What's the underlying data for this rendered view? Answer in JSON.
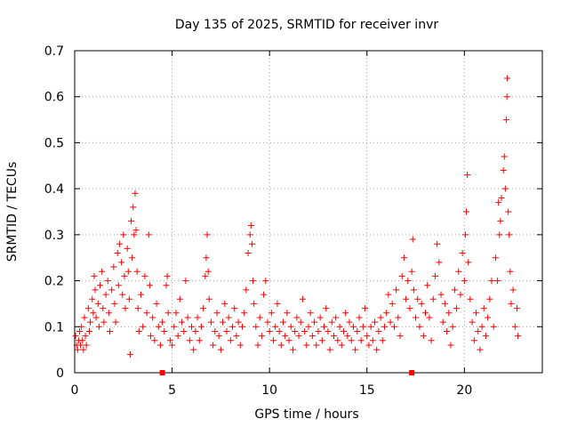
{
  "chart_data": {
    "type": "scatter",
    "title": "Day 135 of 2025, SRMTID for receiver invr",
    "xlabel": "GPS time / hours",
    "ylabel": "SRMTID / TECUs",
    "xlim": [
      0,
      24
    ],
    "ylim": [
      0,
      0.7
    ],
    "xticks": [
      0,
      5,
      10,
      15,
      20
    ],
    "yticks": [
      0,
      0.1,
      0.2,
      0.3,
      0.4,
      0.5,
      0.6,
      0.7
    ],
    "xtick_labels": [
      "0",
      "5",
      "10",
      "15",
      "20"
    ],
    "ytick_labels": [
      "0",
      "0.1",
      "0.2",
      "0.3",
      "0.4",
      "0.5",
      "0.6",
      "0.7"
    ],
    "grid": true,
    "marker": "+",
    "color": "#ff0000",
    "points": [
      [
        0.05,
        0.08
      ],
      [
        0.1,
        0.06
      ],
      [
        0.15,
        0.05
      ],
      [
        0.2,
        0.07
      ],
      [
        0.25,
        0.09
      ],
      [
        0.3,
        0.06
      ],
      [
        0.35,
        0.1
      ],
      [
        0.4,
        0.07
      ],
      [
        0.45,
        0.05
      ],
      [
        0.5,
        0.12
      ],
      [
        0.55,
        0.08
      ],
      [
        0.6,
        0.06
      ],
      [
        0.7,
        0.14
      ],
      [
        0.75,
        0.09
      ],
      [
        0.8,
        0.11
      ],
      [
        0.9,
        0.16
      ],
      [
        0.95,
        0.13
      ],
      [
        1.0,
        0.21
      ],
      [
        1.05,
        0.18
      ],
      [
        1.1,
        0.12
      ],
      [
        1.2,
        0.15
      ],
      [
        1.25,
        0.1
      ],
      [
        1.3,
        0.19
      ],
      [
        1.4,
        0.22
      ],
      [
        1.45,
        0.14
      ],
      [
        1.5,
        0.11
      ],
      [
        1.6,
        0.17
      ],
      [
        1.7,
        0.2
      ],
      [
        1.75,
        0.13
      ],
      [
        1.8,
        0.09
      ],
      [
        1.9,
        0.18
      ],
      [
        2.0,
        0.23
      ],
      [
        2.05,
        0.15
      ],
      [
        2.1,
        0.11
      ],
      [
        2.2,
        0.26
      ],
      [
        2.25,
        0.19
      ],
      [
        2.3,
        0.28
      ],
      [
        2.4,
        0.24
      ],
      [
        2.45,
        0.17
      ],
      [
        2.5,
        0.3
      ],
      [
        2.55,
        0.21
      ],
      [
        2.6,
        0.14
      ],
      [
        2.7,
        0.27
      ],
      [
        2.75,
        0.22
      ],
      [
        2.8,
        0.16
      ],
      [
        2.85,
        0.04
      ],
      [
        2.9,
        0.33
      ],
      [
        2.95,
        0.25
      ],
      [
        3.0,
        0.36
      ],
      [
        3.05,
        0.3
      ],
      [
        3.1,
        0.39
      ],
      [
        3.15,
        0.31
      ],
      [
        3.2,
        0.22
      ],
      [
        3.25,
        0.14
      ],
      [
        3.3,
        0.09
      ],
      [
        3.4,
        0.17
      ],
      [
        3.5,
        0.1
      ],
      [
        3.6,
        0.21
      ],
      [
        3.7,
        0.13
      ],
      [
        3.8,
        0.3
      ],
      [
        3.85,
        0.19
      ],
      [
        3.9,
        0.08
      ],
      [
        4.0,
        0.12
      ],
      [
        4.1,
        0.07
      ],
      [
        4.2,
        0.15
      ],
      [
        4.3,
        0.1
      ],
      [
        4.4,
        0.06
      ],
      [
        4.5,
        0.11
      ],
      [
        4.6,
        0.09
      ],
      [
        4.7,
        0.19
      ],
      [
        4.75,
        0.21
      ],
      [
        4.8,
        0.13
      ],
      [
        4.9,
        0.07
      ],
      [
        5.0,
        0.06
      ],
      [
        5.1,
        0.1
      ],
      [
        5.2,
        0.13
      ],
      [
        5.3,
        0.08
      ],
      [
        5.4,
        0.16
      ],
      [
        5.5,
        0.11
      ],
      [
        5.6,
        0.09
      ],
      [
        5.7,
        0.2
      ],
      [
        5.8,
        0.12
      ],
      [
        5.9,
        0.07
      ],
      [
        6.0,
        0.1
      ],
      [
        6.1,
        0.05
      ],
      [
        6.2,
        0.09
      ],
      [
        6.3,
        0.12
      ],
      [
        6.4,
        0.07
      ],
      [
        6.5,
        0.1
      ],
      [
        6.6,
        0.14
      ],
      [
        6.7,
        0.21
      ],
      [
        6.75,
        0.25
      ],
      [
        6.8,
        0.3
      ],
      [
        6.85,
        0.22
      ],
      [
        6.9,
        0.16
      ],
      [
        7.0,
        0.11
      ],
      [
        7.1,
        0.06
      ],
      [
        7.2,
        0.09
      ],
      [
        7.3,
        0.13
      ],
      [
        7.4,
        0.08
      ],
      [
        7.5,
        0.05
      ],
      [
        7.6,
        0.11
      ],
      [
        7.7,
        0.15
      ],
      [
        7.8,
        0.09
      ],
      [
        7.9,
        0.12
      ],
      [
        8.0,
        0.07
      ],
      [
        8.1,
        0.1
      ],
      [
        8.2,
        0.14
      ],
      [
        8.3,
        0.08
      ],
      [
        8.4,
        0.11
      ],
      [
        8.5,
        0.06
      ],
      [
        8.6,
        0.1
      ],
      [
        8.7,
        0.13
      ],
      [
        8.8,
        0.18
      ],
      [
        8.9,
        0.26
      ],
      [
        9.0,
        0.3
      ],
      [
        9.05,
        0.32
      ],
      [
        9.1,
        0.28
      ],
      [
        9.15,
        0.2
      ],
      [
        9.2,
        0.15
      ],
      [
        9.3,
        0.1
      ],
      [
        9.4,
        0.06
      ],
      [
        9.5,
        0.12
      ],
      [
        9.6,
        0.08
      ],
      [
        9.7,
        0.17
      ],
      [
        9.8,
        0.2
      ],
      [
        9.9,
        0.11
      ],
      [
        10.0,
        0.09
      ],
      [
        10.1,
        0.13
      ],
      [
        10.2,
        0.07
      ],
      [
        10.3,
        0.1
      ],
      [
        10.4,
        0.15
      ],
      [
        10.5,
        0.09
      ],
      [
        10.6,
        0.06
      ],
      [
        10.7,
        0.11
      ],
      [
        10.8,
        0.08
      ],
      [
        10.9,
        0.13
      ],
      [
        11.0,
        0.07
      ],
      [
        11.1,
        0.1
      ],
      [
        11.2,
        0.05
      ],
      [
        11.3,
        0.09
      ],
      [
        11.4,
        0.12
      ],
      [
        11.5,
        0.08
      ],
      [
        11.6,
        0.11
      ],
      [
        11.7,
        0.16
      ],
      [
        11.8,
        0.09
      ],
      [
        11.9,
        0.06
      ],
      [
        12.0,
        0.1
      ],
      [
        12.1,
        0.13
      ],
      [
        12.2,
        0.08
      ],
      [
        12.3,
        0.11
      ],
      [
        12.4,
        0.06
      ],
      [
        12.5,
        0.09
      ],
      [
        12.6,
        0.12
      ],
      [
        12.7,
        0.07
      ],
      [
        12.8,
        0.1
      ],
      [
        12.9,
        0.14
      ],
      [
        13.0,
        0.09
      ],
      [
        13.1,
        0.05
      ],
      [
        13.2,
        0.11
      ],
      [
        13.3,
        0.08
      ],
      [
        13.4,
        0.12
      ],
      [
        13.5,
        0.07
      ],
      [
        13.6,
        0.1
      ],
      [
        13.7,
        0.06
      ],
      [
        13.8,
        0.09
      ],
      [
        13.9,
        0.13
      ],
      [
        14.0,
        0.08
      ],
      [
        14.1,
        0.11
      ],
      [
        14.2,
        0.07
      ],
      [
        14.3,
        0.1
      ],
      [
        14.4,
        0.05
      ],
      [
        14.5,
        0.09
      ],
      [
        14.6,
        0.12
      ],
      [
        14.7,
        0.07
      ],
      [
        14.8,
        0.1
      ],
      [
        14.9,
        0.14
      ],
      [
        15.0,
        0.08
      ],
      [
        15.1,
        0.06
      ],
      [
        15.2,
        0.1
      ],
      [
        15.3,
        0.07
      ],
      [
        15.4,
        0.11
      ],
      [
        15.5,
        0.05
      ],
      [
        15.6,
        0.09
      ],
      [
        15.7,
        0.12
      ],
      [
        15.8,
        0.07
      ],
      [
        15.9,
        0.1
      ],
      [
        16.0,
        0.13
      ],
      [
        16.1,
        0.17
      ],
      [
        16.2,
        0.11
      ],
      [
        16.3,
        0.15
      ],
      [
        16.4,
        0.1
      ],
      [
        16.5,
        0.18
      ],
      [
        16.6,
        0.12
      ],
      [
        16.7,
        0.08
      ],
      [
        16.8,
        0.21
      ],
      [
        16.9,
        0.25
      ],
      [
        17.0,
        0.16
      ],
      [
        17.1,
        0.2
      ],
      [
        17.2,
        0.14
      ],
      [
        17.3,
        0.22
      ],
      [
        17.35,
        0.29
      ],
      [
        17.4,
        0.18
      ],
      [
        17.5,
        0.12
      ],
      [
        17.6,
        0.16
      ],
      [
        17.7,
        0.1
      ],
      [
        17.8,
        0.15
      ],
      [
        17.9,
        0.08
      ],
      [
        18.0,
        0.13
      ],
      [
        18.1,
        0.19
      ],
      [
        18.2,
        0.12
      ],
      [
        18.3,
        0.07
      ],
      [
        18.4,
        0.16
      ],
      [
        18.5,
        0.21
      ],
      [
        18.6,
        0.28
      ],
      [
        18.7,
        0.24
      ],
      [
        18.8,
        0.17
      ],
      [
        18.9,
        0.11
      ],
      [
        19.0,
        0.15
      ],
      [
        19.1,
        0.09
      ],
      [
        19.2,
        0.13
      ],
      [
        19.3,
        0.06
      ],
      [
        19.4,
        0.1
      ],
      [
        19.5,
        0.18
      ],
      [
        19.6,
        0.14
      ],
      [
        19.7,
        0.22
      ],
      [
        19.8,
        0.17
      ],
      [
        19.9,
        0.26
      ],
      [
        20.0,
        0.2
      ],
      [
        20.05,
        0.3
      ],
      [
        20.1,
        0.35
      ],
      [
        20.15,
        0.43
      ],
      [
        20.2,
        0.24
      ],
      [
        20.3,
        0.16
      ],
      [
        20.4,
        0.11
      ],
      [
        20.5,
        0.07
      ],
      [
        20.6,
        0.13
      ],
      [
        20.7,
        0.09
      ],
      [
        20.8,
        0.05
      ],
      [
        20.9,
        0.1
      ],
      [
        21.0,
        0.14
      ],
      [
        21.1,
        0.08
      ],
      [
        21.2,
        0.12
      ],
      [
        21.3,
        0.16
      ],
      [
        21.4,
        0.2
      ],
      [
        21.5,
        0.1
      ],
      [
        21.6,
        0.25
      ],
      [
        21.7,
        0.2
      ],
      [
        21.75,
        0.37
      ],
      [
        21.8,
        0.3
      ],
      [
        21.85,
        0.33
      ],
      [
        21.9,
        0.38
      ],
      [
        22.0,
        0.44
      ],
      [
        22.05,
        0.47
      ],
      [
        22.1,
        0.4
      ],
      [
        22.15,
        0.55
      ],
      [
        22.18,
        0.6
      ],
      [
        22.2,
        0.64
      ],
      [
        22.25,
        0.35
      ],
      [
        22.3,
        0.3
      ],
      [
        22.35,
        0.22
      ],
      [
        22.4,
        0.15
      ],
      [
        22.5,
        0.18
      ],
      [
        22.6,
        0.1
      ],
      [
        22.7,
        0.14
      ],
      [
        22.75,
        0.08
      ]
    ],
    "axis_markers_x": [
      4.5,
      17.3
    ]
  }
}
